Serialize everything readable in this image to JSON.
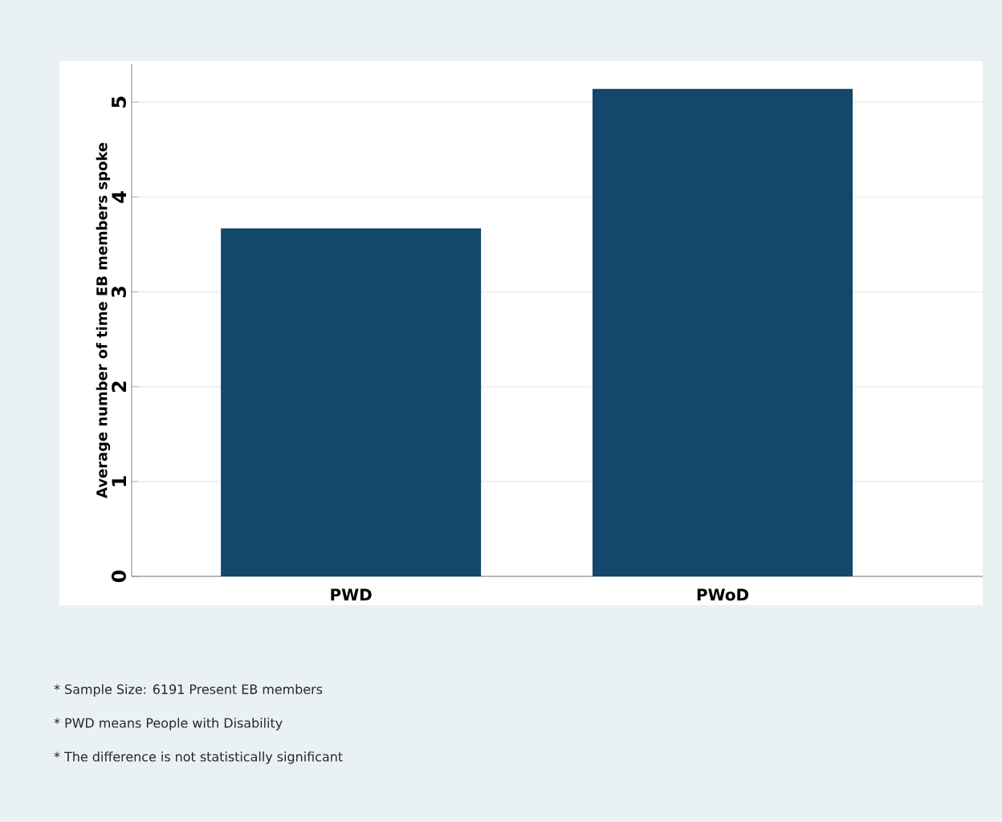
{
  "chart_data": {
    "type": "bar",
    "ylabel": "Average number of time EB members spoke",
    "categories": [
      "PWD",
      "PWoD"
    ],
    "values": [
      3.67,
      5.14
    ],
    "color": "#13476b",
    "ylim": [
      0,
      5.4
    ],
    "yticks": [
      0,
      1,
      2,
      3,
      4,
      5
    ],
    "grid": "y",
    "annotations": [
      "* Sample Size: 6191 Present EB members",
      "* PWD means People with Disability",
      "* The difference is not statistically significant"
    ]
  }
}
